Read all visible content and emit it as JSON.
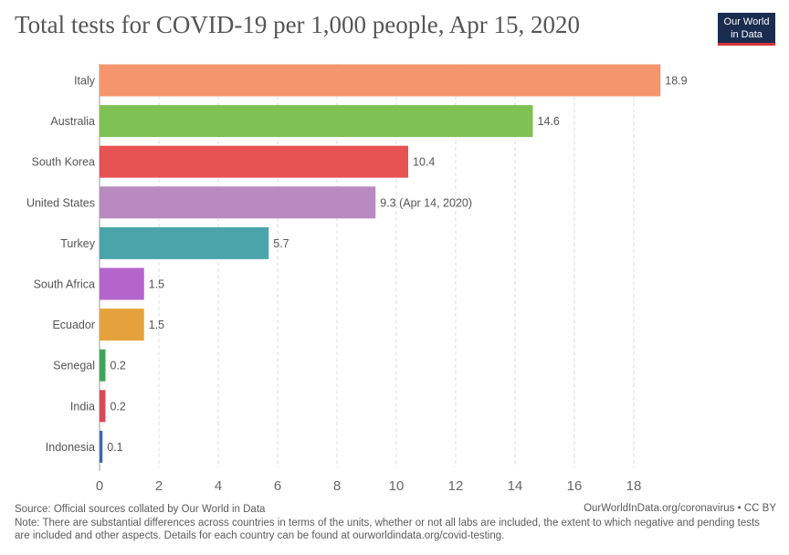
{
  "header": {
    "title": "Total tests for COVID-19 per 1,000 people, Apr 15, 2020",
    "logo_line1": "Our World",
    "logo_line2": "in Data"
  },
  "chart_data": {
    "type": "bar",
    "orientation": "horizontal",
    "title": "Total tests for COVID-19 per 1,000 people, Apr 15, 2020",
    "xlabel": "",
    "ylabel": "",
    "xlim": [
      0,
      19.5
    ],
    "xticks": [
      0,
      2,
      4,
      6,
      8,
      10,
      12,
      14,
      16,
      18
    ],
    "grid": true,
    "categories": [
      "Italy",
      "Australia",
      "South Korea",
      "United States",
      "Turkey",
      "South Africa",
      "Ecuador",
      "Senegal",
      "India",
      "Indonesia"
    ],
    "values": [
      18.9,
      14.6,
      10.4,
      9.3,
      5.7,
      1.5,
      1.5,
      0.2,
      0.2,
      0.1
    ],
    "value_labels": [
      "18.9",
      "14.6",
      "10.4",
      "9.3 (Apr 14, 2020)",
      "5.7",
      "1.5",
      "1.5",
      "0.2",
      "0.2",
      "0.1"
    ],
    "colors": [
      "#f4956d",
      "#80c154",
      "#e75252",
      "#b98abf",
      "#4ba4aa",
      "#b465cb",
      "#e5a23c",
      "#41a45b",
      "#d94a59",
      "#3c67b8"
    ]
  },
  "footer": {
    "source": "Source: Official sources collated by Our World in Data",
    "credit": "OurWorldInData.org/coronavirus • CC BY",
    "note": "Note: There are substantial differences across countries in terms of the units, whether or not all labs are included, the extent to which negative and pending tests are included and other aspects. Details for each country can be found at ourworldindata.org/covid-testing."
  }
}
